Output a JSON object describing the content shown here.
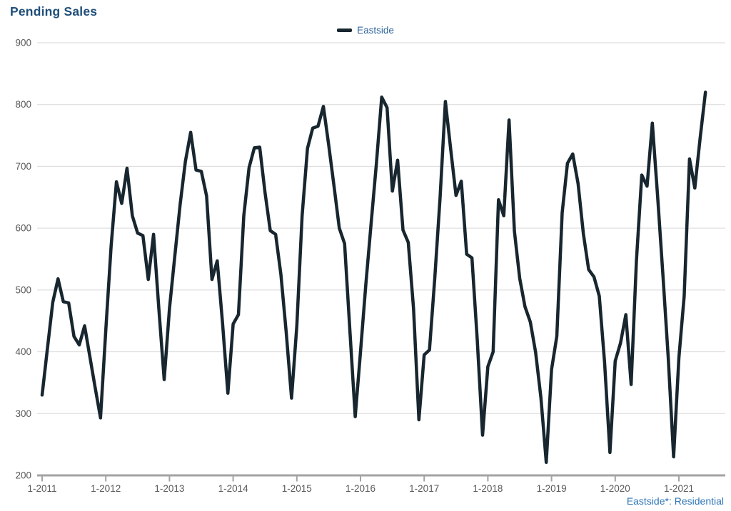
{
  "header": {
    "title": "Pending Sales",
    "title_color": "#1f4e79"
  },
  "legend": {
    "label": "Eastside",
    "swatch_color": "#17262f",
    "text_color": "#33669c",
    "position": "top-center"
  },
  "footer": {
    "note": "Eastside*: Residential",
    "color": "#2e75b6"
  },
  "chart_data": {
    "type": "line",
    "title": "Pending Sales",
    "frequency": "monthly",
    "x_start": "1-2011",
    "x_end": "6-2021",
    "x_tick_labels": [
      "1-2011",
      "1-2012",
      "1-2013",
      "1-2014",
      "1-2015",
      "1-2016",
      "1-2017",
      "1-2018",
      "1-2019",
      "1-2020",
      "1-2021"
    ],
    "x_tick_month_interval": 12,
    "y_ticks": [
      200,
      300,
      400,
      500,
      600,
      700,
      800,
      900
    ],
    "ylim": [
      200,
      900
    ],
    "grid": "horizontal",
    "grid_color": "#d9d9d9",
    "axis_color": "#a3a3a3",
    "tick_label_color": "#595959",
    "legend_position": "top-center",
    "series": [
      {
        "name": "Eastside",
        "color": "#17262f",
        "stroke_width": 4.5,
        "values": [
          330,
          405,
          480,
          518,
          481,
          479,
          425,
          411,
          442,
          392,
          342,
          293,
          435,
          570,
          675,
          640,
          697,
          620,
          592,
          588,
          517,
          590,
          470,
          355,
          470,
          554,
          638,
          708,
          755,
          694,
          692,
          652,
          517,
          547,
          447,
          333,
          445,
          460,
          620,
          698,
          730,
          731,
          658,
          596,
          590,
          525,
          432,
          325,
          442,
          620,
          729,
          762,
          765,
          797,
          735,
          669,
          600,
          575,
          435,
          295,
          400,
          508,
          608,
          705,
          812,
          795,
          660,
          710,
          597,
          577,
          470,
          290,
          395,
          403,
          520,
          650,
          805,
          727,
          653,
          676,
          558,
          552,
          420,
          265,
          376,
          400,
          646,
          620,
          775,
          595,
          519,
          473,
          448,
          399,
          326,
          221,
          371,
          425,
          625,
          705,
          720,
          672,
          591,
          533,
          521,
          490,
          383,
          237,
          385,
          414,
          460,
          347,
          547,
          686,
          668,
          770,
          650,
          523,
          390,
          230,
          390,
          490,
          712,
          665,
          745,
          820
        ]
      }
    ]
  }
}
